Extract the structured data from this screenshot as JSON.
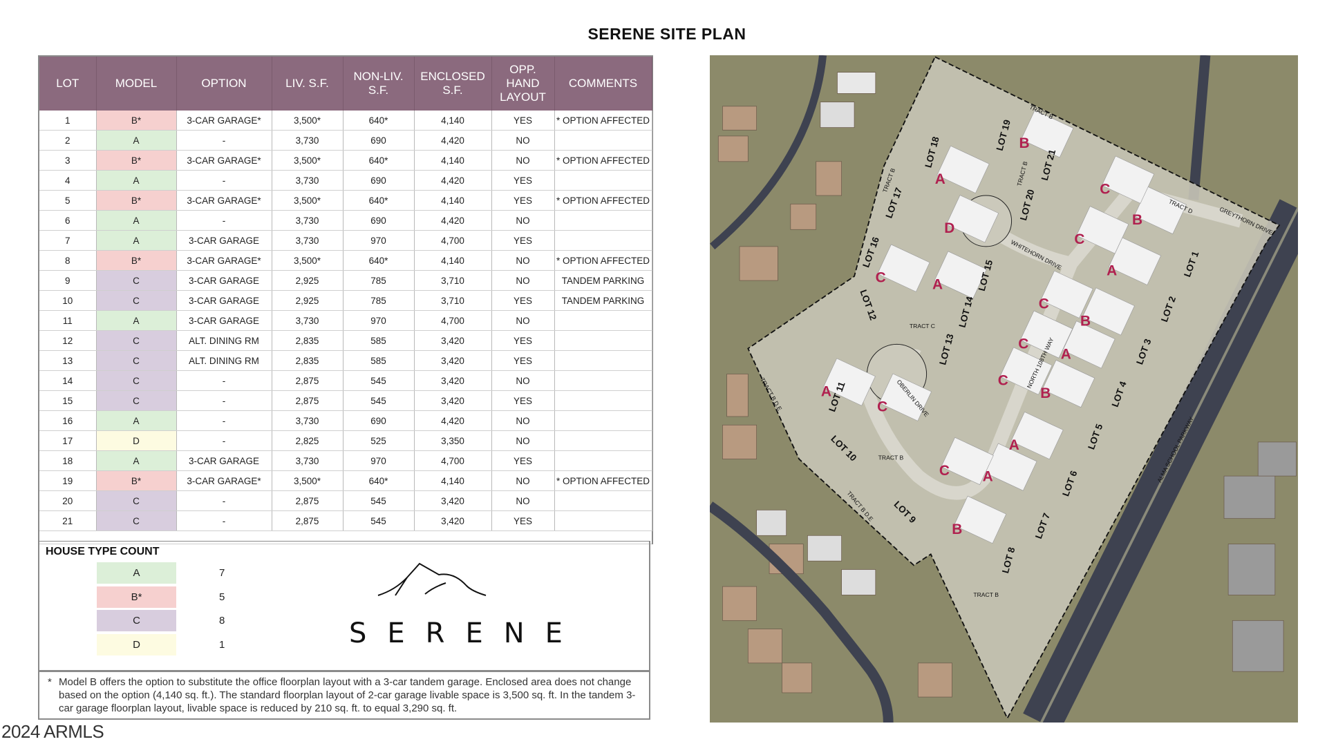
{
  "title": "SERENE SITE PLAN",
  "table": {
    "headers": [
      "LOT",
      "MODEL",
      "OPTION",
      "LIV. S.F.",
      "NON-LIV. S.F.",
      "ENCLOSED S.F.",
      "OPP. HAND LAYOUT",
      "COMMENTS"
    ],
    "rows": [
      [
        "1",
        "B*",
        "3-CAR GARAGE*",
        "3,500*",
        "640*",
        "4,140",
        "YES",
        "* OPTION AFFECTED"
      ],
      [
        "2",
        "A",
        "-",
        "3,730",
        "690",
        "4,420",
        "NO",
        ""
      ],
      [
        "3",
        "B*",
        "3-CAR GARAGE*",
        "3,500*",
        "640*",
        "4,140",
        "NO",
        "* OPTION AFFECTED"
      ],
      [
        "4",
        "A",
        "-",
        "3,730",
        "690",
        "4,420",
        "YES",
        ""
      ],
      [
        "5",
        "B*",
        "3-CAR GARAGE*",
        "3,500*",
        "640*",
        "4,140",
        "YES",
        "* OPTION AFFECTED"
      ],
      [
        "6",
        "A",
        "-",
        "3,730",
        "690",
        "4,420",
        "NO",
        ""
      ],
      [
        "7",
        "A",
        "3-CAR GARAGE",
        "3,730",
        "970",
        "4,700",
        "YES",
        ""
      ],
      [
        "8",
        "B*",
        "3-CAR GARAGE*",
        "3,500*",
        "640*",
        "4,140",
        "NO",
        "* OPTION AFFECTED"
      ],
      [
        "9",
        "C",
        "3-CAR GARAGE",
        "2,925",
        "785",
        "3,710",
        "NO",
        "TANDEM PARKING"
      ],
      [
        "10",
        "C",
        "3-CAR GARAGE",
        "2,925",
        "785",
        "3,710",
        "YES",
        "TANDEM PARKING"
      ],
      [
        "11",
        "A",
        "3-CAR GARAGE",
        "3,730",
        "970",
        "4,700",
        "NO",
        ""
      ],
      [
        "12",
        "C",
        "ALT. DINING RM",
        "2,835",
        "585",
        "3,420",
        "YES",
        ""
      ],
      [
        "13",
        "C",
        "ALT. DINING RM",
        "2,835",
        "585",
        "3,420",
        "YES",
        ""
      ],
      [
        "14",
        "C",
        "-",
        "2,875",
        "545",
        "3,420",
        "NO",
        ""
      ],
      [
        "15",
        "C",
        "-",
        "2,875",
        "545",
        "3,420",
        "YES",
        ""
      ],
      [
        "16",
        "A",
        "-",
        "3,730",
        "690",
        "4,420",
        "NO",
        ""
      ],
      [
        "17",
        "D",
        "-",
        "2,825",
        "525",
        "3,350",
        "NO",
        ""
      ],
      [
        "18",
        "A",
        "3-CAR GARAGE",
        "3,730",
        "970",
        "4,700",
        "YES",
        ""
      ],
      [
        "19",
        "B*",
        "3-CAR GARAGE*",
        "3,500*",
        "640*",
        "4,140",
        "NO",
        "* OPTION AFFECTED"
      ],
      [
        "20",
        "C",
        "-",
        "2,875",
        "545",
        "3,420",
        "NO",
        ""
      ],
      [
        "21",
        "C",
        "-",
        "2,875",
        "545",
        "3,420",
        "YES",
        ""
      ]
    ]
  },
  "house_type_count": {
    "title": "HOUSE TYPE COUNT",
    "items": [
      {
        "model": "A",
        "count": "7",
        "color": "#dcefd8"
      },
      {
        "model": "B*",
        "count": "5",
        "color": "#f6d0cf"
      },
      {
        "model": "C",
        "count": "8",
        "color": "#d8cdde"
      },
      {
        "model": "D",
        "count": "1",
        "color": "#fdfbe1"
      }
    ]
  },
  "logo": {
    "text": "SERENE",
    "icon": "mountain-icon"
  },
  "footnote": {
    "marker": "*",
    "text": "Model B offers the option to substitute the office floorplan layout with a 3-car tandem garage. Enclosed area does not change based on the option (4,140 sq. ft.). The standard floorplan layout of 2-car garage livable space is 3,500 sq. ft. In the tandem 3-car garage floorplan layout, livable space is reduced by 210 sq. ft. to equal 3,290 sq. ft."
  },
  "watermark": "2024 ARMLS",
  "colors": {
    "header": "#8b6a7e",
    "model_letter": "#b0204f"
  },
  "map": {
    "lots": [
      "LOT 1",
      "LOT 2",
      "LOT 3",
      "LOT 4",
      "LOT 5",
      "LOT 6",
      "LOT 7",
      "LOT 8",
      "LOT 9",
      "LOT 10",
      "LOT 11",
      "LOT 12",
      "LOT 13",
      "LOT 14",
      "LOT 15",
      "LOT 16",
      "LOT 17",
      "LOT 18",
      "LOT 19",
      "LOT 20",
      "LOT 21"
    ],
    "models": [
      "B",
      "A",
      "B",
      "A",
      "B",
      "A",
      "A",
      "B",
      "C",
      "C",
      "A",
      "C",
      "C",
      "C",
      "C",
      "A",
      "D",
      "A",
      "B",
      "C",
      "C"
    ],
    "streets": [
      "WHITEHORN DRIVE",
      "NORTH 108TH WAY",
      "OBERLIN DRIVE",
      "GREYTHORN DRIVE",
      "ALMA SCHOOL PARKWAY"
    ],
    "tracts": [
      "TRACT B",
      "TRACT B",
      "TRACT B",
      "TRACT D",
      "TRACT C",
      "TRACT B D.E",
      "TRACT B",
      "TRACT B D.E",
      "TRACT B"
    ]
  }
}
